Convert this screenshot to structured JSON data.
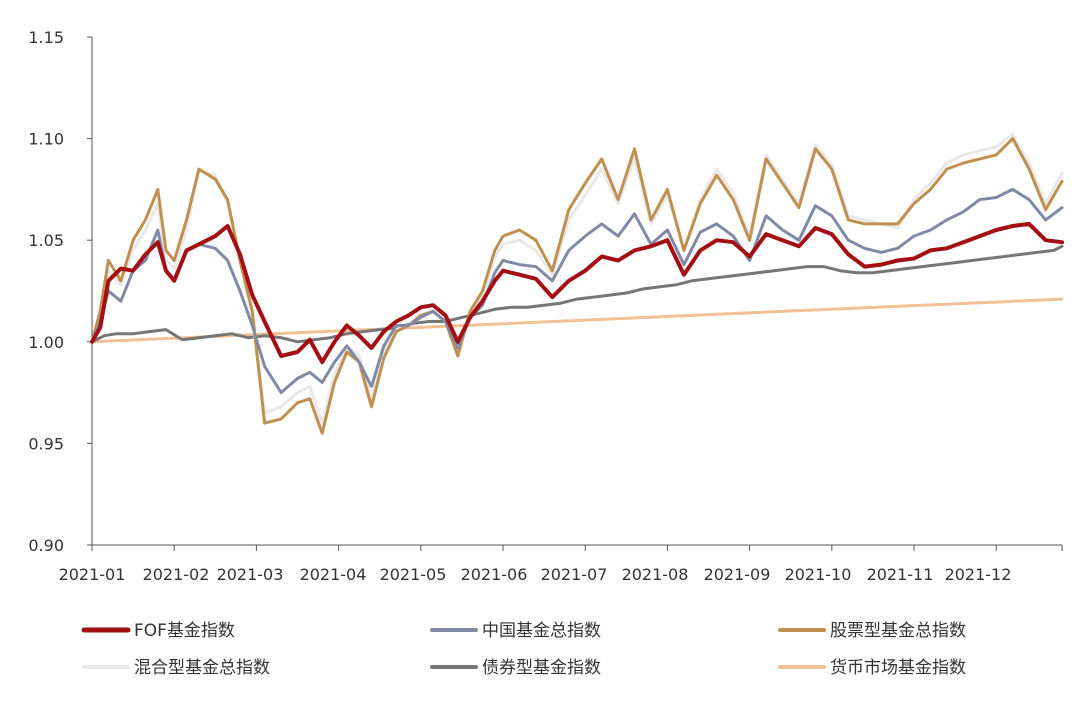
{
  "chart_data": {
    "type": "line",
    "title": "",
    "xlabel": "",
    "ylabel": "",
    "ylim": [
      0.9,
      1.15
    ],
    "yticks": [
      "0.90",
      "0.95",
      "1.00",
      "1.05",
      "1.10",
      "1.15"
    ],
    "xticks": [
      "2021-01",
      "2021-02",
      "2021-03",
      "2021-04",
      "2021-05",
      "2021-06",
      "2021-07",
      "2021-08",
      "2021-09",
      "2021-10",
      "2021-11",
      "2021-12"
    ],
    "xtick_months": [
      0,
      1,
      2,
      3,
      4,
      5,
      6,
      7,
      8,
      9,
      10,
      11
    ],
    "x_unit": "months since 2021-01",
    "grid": false,
    "legend_position": "bottom",
    "series": [
      {
        "name": "FOF基金指数",
        "color": "#a30f13",
        "x": [
          0,
          0.1,
          0.2,
          0.35,
          0.5,
          0.65,
          0.8,
          0.9,
          1.0,
          1.15,
          1.3,
          1.5,
          1.65,
          1.8,
          1.95,
          2.1,
          2.3,
          2.5,
          2.65,
          2.8,
          2.95,
          3.1,
          3.25,
          3.4,
          3.55,
          3.7,
          3.85,
          4.0,
          4.15,
          4.3,
          4.45,
          4.6,
          4.75,
          4.9,
          5.0,
          5.2,
          5.4,
          5.6,
          5.8,
          6.0,
          6.2,
          6.4,
          6.6,
          6.8,
          7.0,
          7.2,
          7.4,
          7.6,
          7.8,
          8.0,
          8.2,
          8.4,
          8.6,
          8.8,
          9.0,
          9.2,
          9.4,
          9.6,
          9.8,
          10.0,
          10.2,
          10.4,
          10.6,
          10.8,
          11.0,
          11.2,
          11.4,
          11.6,
          11.8
        ],
        "values": [
          1.0,
          1.007,
          1.03,
          1.036,
          1.035,
          1.043,
          1.049,
          1.035,
          1.03,
          1.045,
          1.048,
          1.052,
          1.057,
          1.043,
          1.023,
          1.01,
          0.993,
          0.995,
          1.001,
          0.99,
          1.0,
          1.008,
          1.003,
          0.997,
          1.005,
          1.01,
          1.013,
          1.017,
          1.018,
          1.013,
          1.0,
          1.012,
          1.02,
          1.03,
          1.035,
          1.033,
          1.031,
          1.022,
          1.03,
          1.035,
          1.042,
          1.04,
          1.045,
          1.047,
          1.05,
          1.033,
          1.045,
          1.05,
          1.049,
          1.042,
          1.053,
          1.05,
          1.047,
          1.056,
          1.053,
          1.043,
          1.037,
          1.038,
          1.04,
          1.041,
          1.045,
          1.046,
          1.049,
          1.052,
          1.055,
          1.057,
          1.058,
          1.05,
          1.049
        ]
      },
      {
        "name": "中国基金总指数",
        "color": "#808aa6",
        "x": [
          0,
          0.1,
          0.2,
          0.35,
          0.5,
          0.65,
          0.8,
          0.9,
          1.0,
          1.15,
          1.3,
          1.5,
          1.65,
          1.8,
          1.95,
          2.1,
          2.3,
          2.5,
          2.65,
          2.8,
          2.95,
          3.1,
          3.25,
          3.4,
          3.55,
          3.7,
          3.85,
          4.0,
          4.15,
          4.3,
          4.45,
          4.6,
          4.75,
          4.9,
          5.0,
          5.2,
          5.4,
          5.6,
          5.8,
          6.0,
          6.2,
          6.4,
          6.6,
          6.8,
          7.0,
          7.2,
          7.4,
          7.6,
          7.8,
          8.0,
          8.2,
          8.4,
          8.6,
          8.8,
          9.0,
          9.2,
          9.4,
          9.6,
          9.8,
          10.0,
          10.2,
          10.4,
          10.6,
          10.8,
          11.0,
          11.2,
          11.4,
          11.6,
          11.8
        ],
        "values": [
          1.0,
          1.01,
          1.025,
          1.02,
          1.035,
          1.04,
          1.055,
          1.035,
          1.03,
          1.045,
          1.048,
          1.046,
          1.04,
          1.025,
          1.008,
          0.988,
          0.975,
          0.982,
          0.985,
          0.98,
          0.99,
          0.998,
          0.99,
          0.978,
          0.998,
          1.008,
          1.008,
          1.012,
          1.015,
          1.01,
          0.997,
          1.012,
          1.018,
          1.034,
          1.04,
          1.038,
          1.037,
          1.03,
          1.045,
          1.052,
          1.058,
          1.052,
          1.063,
          1.048,
          1.055,
          1.038,
          1.054,
          1.058,
          1.052,
          1.04,
          1.062,
          1.055,
          1.05,
          1.067,
          1.062,
          1.05,
          1.046,
          1.044,
          1.046,
          1.052,
          1.055,
          1.06,
          1.064,
          1.07,
          1.071,
          1.075,
          1.07,
          1.06,
          1.066
        ]
      },
      {
        "name": "股票型基金总指数",
        "color": "#c09050",
        "x": [
          0,
          0.1,
          0.2,
          0.35,
          0.5,
          0.65,
          0.8,
          0.9,
          1.0,
          1.15,
          1.3,
          1.5,
          1.65,
          1.8,
          1.95,
          2.1,
          2.3,
          2.5,
          2.65,
          2.8,
          2.95,
          3.1,
          3.25,
          3.4,
          3.55,
          3.7,
          3.85,
          4.0,
          4.15,
          4.3,
          4.45,
          4.6,
          4.75,
          4.9,
          5.0,
          5.2,
          5.4,
          5.6,
          5.8,
          6.0,
          6.2,
          6.4,
          6.6,
          6.8,
          7.0,
          7.2,
          7.4,
          7.6,
          7.8,
          8.0,
          8.2,
          8.4,
          8.6,
          8.8,
          9.0,
          9.2,
          9.4,
          9.6,
          9.8,
          10.0,
          10.2,
          10.4,
          10.6,
          10.8,
          11.0,
          11.2,
          11.4,
          11.6,
          11.8
        ],
        "values": [
          1.0,
          1.015,
          1.04,
          1.03,
          1.05,
          1.06,
          1.075,
          1.045,
          1.04,
          1.06,
          1.085,
          1.08,
          1.07,
          1.04,
          1.015,
          0.96,
          0.962,
          0.97,
          0.972,
          0.955,
          0.98,
          0.995,
          0.99,
          0.968,
          0.992,
          1.005,
          1.008,
          1.013,
          1.015,
          1.01,
          0.993,
          1.015,
          1.025,
          1.045,
          1.052,
          1.055,
          1.05,
          1.035,
          1.065,
          1.078,
          1.09,
          1.07,
          1.095,
          1.06,
          1.075,
          1.045,
          1.068,
          1.082,
          1.07,
          1.05,
          1.09,
          1.078,
          1.066,
          1.095,
          1.085,
          1.06,
          1.058,
          1.058,
          1.058,
          1.068,
          1.075,
          1.085,
          1.088,
          1.09,
          1.092,
          1.1,
          1.085,
          1.065,
          1.079
        ]
      },
      {
        "name": "混合型基金总指数",
        "color": "#e8e8e8",
        "x": [
          0,
          0.1,
          0.2,
          0.35,
          0.5,
          0.65,
          0.8,
          0.9,
          1.0,
          1.15,
          1.3,
          1.5,
          1.65,
          1.8,
          1.95,
          2.1,
          2.3,
          2.5,
          2.65,
          2.8,
          2.95,
          3.1,
          3.25,
          3.4,
          3.55,
          3.7,
          3.85,
          4.0,
          4.15,
          4.3,
          4.45,
          4.6,
          4.75,
          4.9,
          5.0,
          5.2,
          5.4,
          5.6,
          5.8,
          6.0,
          6.2,
          6.4,
          6.6,
          6.8,
          7.0,
          7.2,
          7.4,
          7.6,
          7.8,
          8.0,
          8.2,
          8.4,
          8.6,
          8.8,
          9.0,
          9.2,
          9.4,
          9.6,
          9.8,
          10.0,
          10.2,
          10.4,
          10.6,
          10.8,
          11.0,
          11.2,
          11.4,
          11.6,
          11.8
        ],
        "values": [
          1.0,
          1.012,
          1.035,
          1.028,
          1.045,
          1.055,
          1.068,
          1.04,
          1.036,
          1.055,
          1.084,
          1.082,
          1.068,
          1.04,
          1.012,
          0.965,
          0.968,
          0.975,
          0.978,
          0.96,
          0.984,
          0.998,
          0.993,
          0.972,
          0.995,
          1.006,
          1.008,
          1.013,
          1.015,
          1.01,
          0.994,
          1.014,
          1.022,
          1.042,
          1.048,
          1.05,
          1.045,
          1.033,
          1.06,
          1.072,
          1.085,
          1.068,
          1.09,
          1.058,
          1.072,
          1.045,
          1.07,
          1.085,
          1.073,
          1.052,
          1.092,
          1.08,
          1.068,
          1.097,
          1.087,
          1.062,
          1.06,
          1.058,
          1.056,
          1.07,
          1.078,
          1.088,
          1.092,
          1.094,
          1.096,
          1.102,
          1.088,
          1.068,
          1.083
        ]
      },
      {
        "name": "债券型基金指数",
        "color": "#767676",
        "x": [
          0,
          0.15,
          0.3,
          0.5,
          0.7,
          0.9,
          1.1,
          1.3,
          1.5,
          1.7,
          1.9,
          2.1,
          2.3,
          2.5,
          2.7,
          2.9,
          3.1,
          3.3,
          3.5,
          3.7,
          3.9,
          4.1,
          4.3,
          4.5,
          4.7,
          4.9,
          5.1,
          5.3,
          5.5,
          5.7,
          5.9,
          6.1,
          6.3,
          6.5,
          6.7,
          6.9,
          7.1,
          7.3,
          7.5,
          7.7,
          7.9,
          8.1,
          8.3,
          8.5,
          8.7,
          8.9,
          9.1,
          9.3,
          9.5,
          9.7,
          9.9,
          10.1,
          10.3,
          10.5,
          10.7,
          10.9,
          11.1,
          11.3,
          11.5,
          11.7,
          11.8
        ],
        "values": [
          1.0,
          1.003,
          1.004,
          1.004,
          1.005,
          1.006,
          1.001,
          1.002,
          1.003,
          1.004,
          1.002,
          1.003,
          1.002,
          1.0,
          1.001,
          1.002,
          1.004,
          1.005,
          1.006,
          1.007,
          1.009,
          1.01,
          1.01,
          1.012,
          1.014,
          1.016,
          1.017,
          1.017,
          1.018,
          1.019,
          1.021,
          1.022,
          1.023,
          1.024,
          1.026,
          1.027,
          1.028,
          1.03,
          1.031,
          1.032,
          1.033,
          1.034,
          1.035,
          1.036,
          1.037,
          1.037,
          1.035,
          1.034,
          1.034,
          1.035,
          1.036,
          1.037,
          1.038,
          1.039,
          1.04,
          1.041,
          1.042,
          1.043,
          1.044,
          1.045,
          1.047
        ]
      },
      {
        "name": "货币市场基金指数",
        "color": "#f2c096",
        "x": [
          0,
          11.8
        ],
        "values": [
          1.0,
          1.021
        ]
      }
    ]
  }
}
